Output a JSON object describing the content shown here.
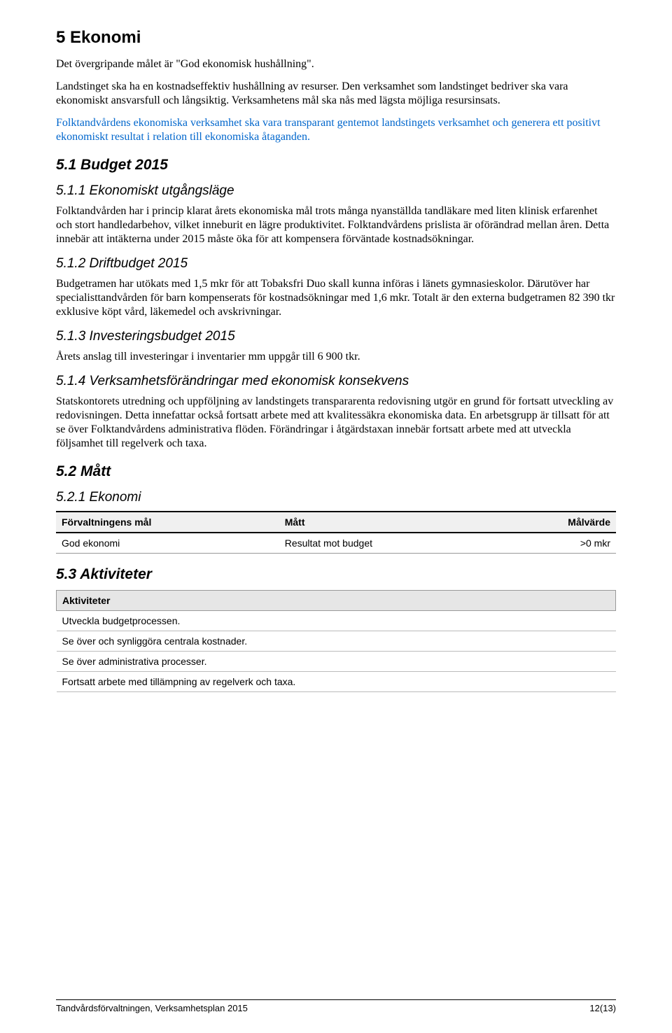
{
  "h1": "5 Ekonomi",
  "p1": "Det övergripande målet är \"God ekonomisk hushållning\".",
  "p2": "Landstinget ska ha en kostnadseffektiv hushållning av resurser. Den verksamhet som landstinget bedriver ska vara ekonomiskt ansvarsfull och långsiktig. Verksamhetens mål ska nås med lägsta möjliga resursinsats.",
  "p3": "Folktandvårdens ekonomiska verksamhet ska vara transparant gentemot landstingets verksamhet och generera ett positivt ekonomiskt resultat i relation till ekonomiska åtaganden.",
  "h2_51": "5.1 Budget 2015",
  "h3_511": "5.1.1 Ekonomiskt utgångsläge",
  "p511": "Folktandvården har i princip klarat årets ekonomiska mål trots många nyanställda tandläkare med liten klinisk erfarenhet och stort handledarbehov, vilket inneburit en lägre produktivitet. Folktandvårdens prislista är oförändrad mellan åren. Detta innebär att intäkterna under 2015 måste öka för att kompensera förväntade kostnadsökningar.",
  "h3_512": "5.1.2 Driftbudget 2015",
  "p512": "Budgetramen har utökats med 1,5 mkr för att Tobaksfri Duo skall kunna införas i länets gymnasieskolor. Därutöver har specialisttandvården för barn kompenserats för kostnadsökningar med 1,6 mkr. Totalt är den externa budgetramen 82 390 tkr exklusive köpt vård, läkemedel och avskrivningar.",
  "h3_513": "5.1.3 Investeringsbudget 2015",
  "p513": "Årets anslag till investeringar i inventarier mm uppgår till 6 900 tkr.",
  "h3_514": "5.1.4 Verksamhetsförändringar med ekonomisk konsekvens",
  "p514": "Statskontorets utredning och uppföljning av landstingets transpararenta redovisning utgör en grund för fortsatt utveckling av redovisningen. Detta innefattar också fortsatt arbete med att kvalitessäkra ekonomiska data. En arbetsgrupp är tillsatt för att se över Folktandvårdens administrativa flöden. Förändringar i åtgärdstaxan innebär fortsatt arbete med att utveckla följsamhet till regelverk och taxa.",
  "h2_52": "5.2 Mått",
  "h3_521": "5.2.1 Ekonomi",
  "matt_table": {
    "headers": [
      "Förvaltningens mål",
      "Mått",
      "Målvärde"
    ],
    "row": [
      "God ekonomi",
      "Resultat mot budget",
      ">0 mkr"
    ]
  },
  "h2_53": "5.3 Aktiviteter",
  "akt_table": {
    "header": "Aktiviteter",
    "rows": [
      "Utveckla budgetprocessen.",
      "Se över och synliggöra centrala kostnader.",
      "Se över administrativa processer.",
      "Fortsatt arbete med tillämpning av regelverk och taxa."
    ]
  },
  "footer_left": "Tandvårdsförvaltningen, Verksamhetsplan 2015",
  "footer_right": "12(13)"
}
